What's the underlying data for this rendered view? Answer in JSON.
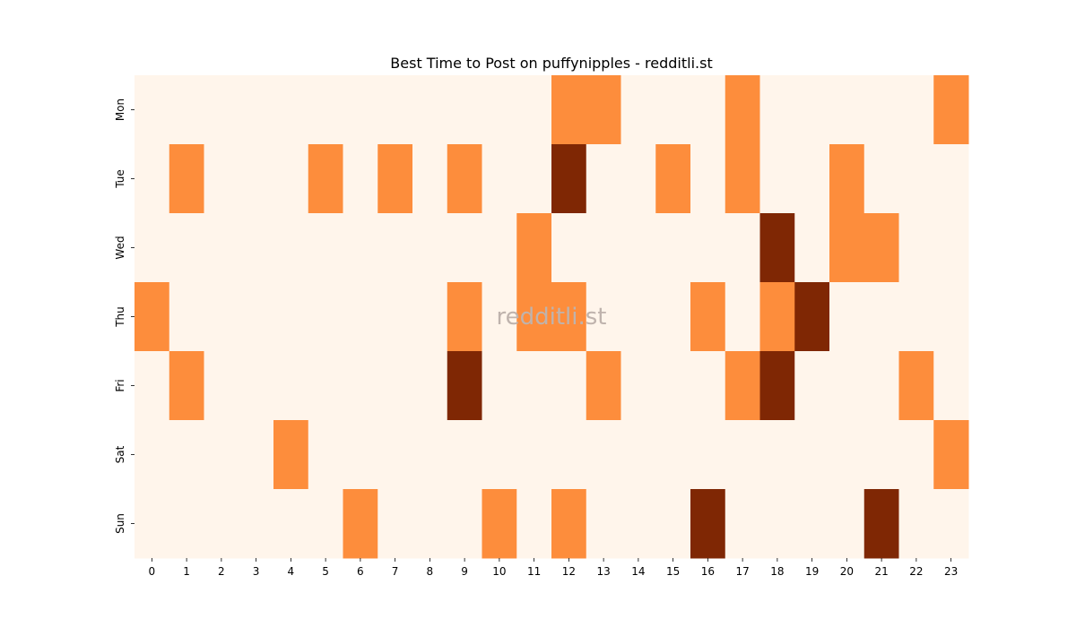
{
  "chart_data": {
    "type": "heatmap",
    "title": "Best Time to Post on puffynipples - redditli.st",
    "watermark": "redditli.st",
    "xlabel": "",
    "ylabel": "",
    "x_labels": [
      "0",
      "1",
      "2",
      "3",
      "4",
      "5",
      "6",
      "7",
      "8",
      "9",
      "10",
      "11",
      "12",
      "13",
      "14",
      "15",
      "16",
      "17",
      "18",
      "19",
      "20",
      "21",
      "22",
      "23"
    ],
    "y_labels": [
      "Mon",
      "Tue",
      "Wed",
      "Thu",
      "Fri",
      "Sat",
      "Sun"
    ],
    "values": [
      [
        0,
        0,
        0,
        0,
        0,
        0,
        0,
        0,
        0,
        0,
        0,
        0,
        1,
        1,
        0,
        0,
        0,
        1,
        0,
        0,
        0,
        0,
        0,
        1
      ],
      [
        0,
        1,
        0,
        0,
        0,
        1,
        0,
        1,
        0,
        1,
        0,
        0,
        2,
        0,
        0,
        1,
        0,
        1,
        0,
        0,
        1,
        0,
        0,
        0
      ],
      [
        0,
        0,
        0,
        0,
        0,
        0,
        0,
        0,
        0,
        0,
        0,
        1,
        0,
        0,
        0,
        0,
        0,
        0,
        2,
        0,
        1,
        1,
        0,
        0
      ],
      [
        1,
        0,
        0,
        0,
        0,
        0,
        0,
        0,
        0,
        1,
        0,
        1,
        1,
        0,
        0,
        0,
        1,
        0,
        1,
        2,
        0,
        0,
        0,
        0
      ],
      [
        0,
        1,
        0,
        0,
        0,
        0,
        0,
        0,
        0,
        2,
        0,
        0,
        0,
        1,
        0,
        0,
        0,
        1,
        2,
        0,
        0,
        0,
        1,
        0
      ],
      [
        0,
        0,
        0,
        0,
        1,
        0,
        0,
        0,
        0,
        0,
        0,
        0,
        0,
        0,
        0,
        0,
        0,
        0,
        0,
        0,
        0,
        0,
        0,
        1
      ],
      [
        0,
        0,
        0,
        0,
        0,
        0,
        1,
        0,
        0,
        0,
        1,
        0,
        1,
        0,
        0,
        0,
        2,
        0,
        0,
        0,
        0,
        2,
        0,
        0
      ]
    ],
    "colorscale": [
      "#fff5eb",
      "#fd8d3c",
      "#7f2704"
    ],
    "colorbar": false
  }
}
